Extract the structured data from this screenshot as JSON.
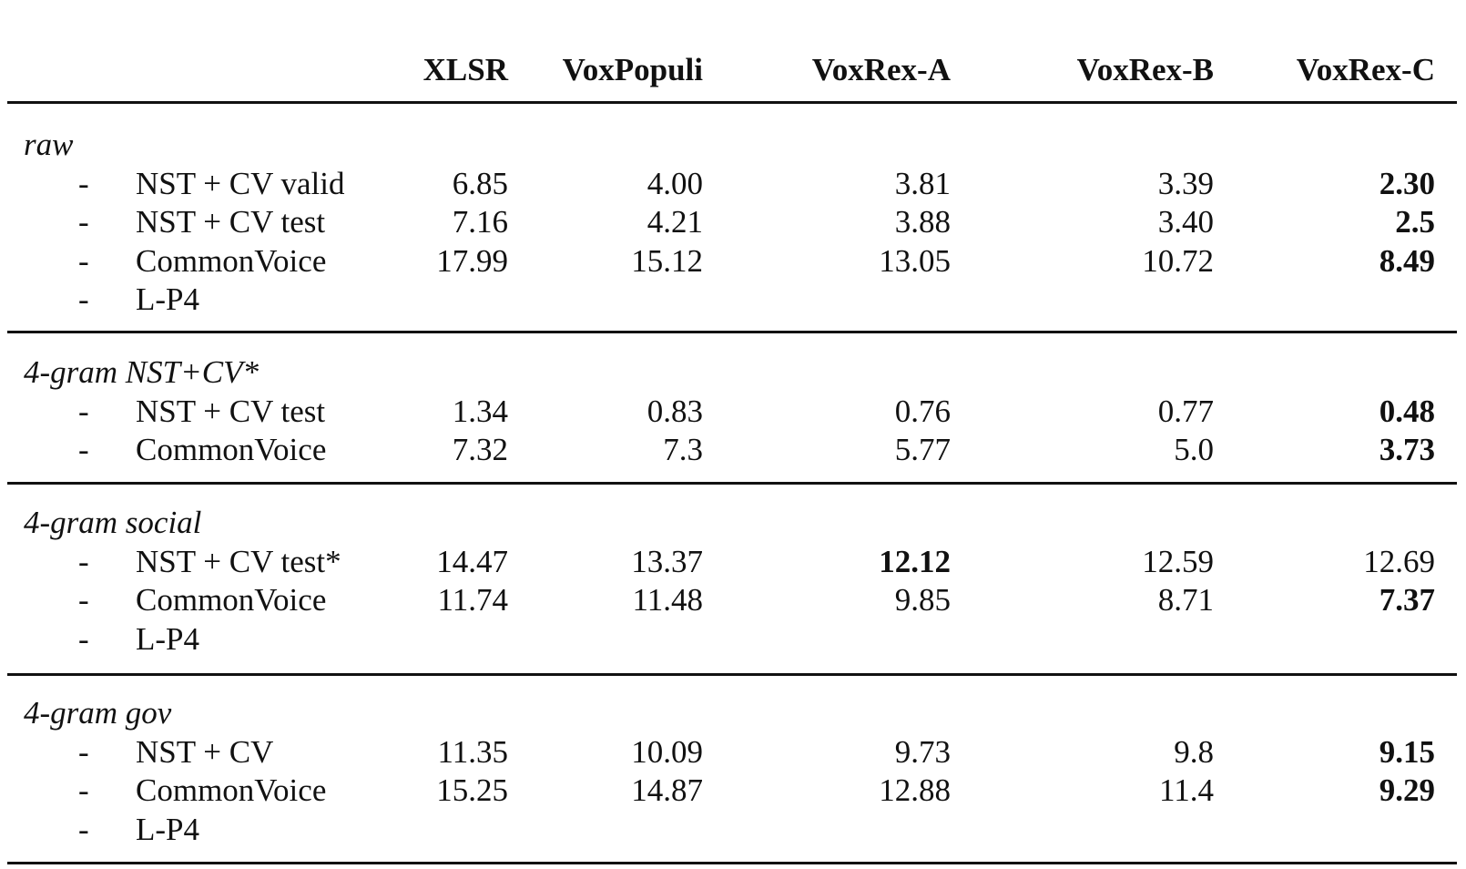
{
  "columns": [
    "XLSR",
    "VoxPopuli",
    "VoxRex-A",
    "VoxRex-B",
    "VoxRex-C"
  ],
  "groups": [
    {
      "title": "raw",
      "rows": [
        {
          "bullet": "-",
          "label": "NST + CV valid",
          "values": [
            "6.85",
            "4.00",
            "3.81",
            "3.39",
            "2.30"
          ],
          "bold_col": 4
        },
        {
          "bullet": "-",
          "label": "NST + CV test",
          "values": [
            "7.16",
            "4.21",
            "3.88",
            "3.40",
            "2.5"
          ],
          "bold_col": 4
        },
        {
          "bullet": "-",
          "label": "CommonVoice",
          "values": [
            "17.99",
            "15.12",
            "13.05",
            "10.72",
            "8.49"
          ],
          "bold_col": 4
        },
        {
          "bullet": "-",
          "label": "L-P4",
          "values": [
            "",
            "",
            "",
            "",
            ""
          ],
          "bold_col": -1
        }
      ]
    },
    {
      "title": "4-gram NST+CV*",
      "rows": [
        {
          "bullet": "-",
          "label": "NST + CV test",
          "values": [
            "1.34",
            "0.83",
            "0.76",
            "0.77",
            "0.48"
          ],
          "bold_col": 4
        },
        {
          "bullet": "-",
          "label": "CommonVoice",
          "values": [
            "7.32",
            "7.3",
            "5.77",
            "5.0",
            "3.73"
          ],
          "bold_col": 4
        }
      ]
    },
    {
      "title": "4-gram social",
      "rows": [
        {
          "bullet": "-",
          "label": "NST + CV test*",
          "values": [
            "14.47",
            "13.37",
            "12.12",
            "12.59",
            "12.69"
          ],
          "bold_col": 2
        },
        {
          "bullet": "-",
          "label": "CommonVoice",
          "values": [
            "11.74",
            "11.48",
            "9.85",
            "8.71",
            "7.37"
          ],
          "bold_col": 4
        },
        {
          "bullet": "-",
          "label": "L-P4",
          "values": [
            "",
            "",
            "",
            "",
            ""
          ],
          "bold_col": -1
        }
      ]
    },
    {
      "title": "4-gram gov",
      "rows": [
        {
          "bullet": "-",
          "label": "NST + CV",
          "values": [
            "11.35",
            "10.09",
            "9.73",
            "9.8",
            "9.15"
          ],
          "bold_col": 4
        },
        {
          "bullet": "-",
          "label": "CommonVoice",
          "values": [
            "15.25",
            "14.87",
            "12.88",
            "11.4",
            "9.29"
          ],
          "bold_col": 4
        },
        {
          "bullet": "-",
          "label": "L-P4",
          "values": [
            "",
            "",
            "",
            "",
            ""
          ],
          "bold_col": -1
        }
      ]
    }
  ]
}
